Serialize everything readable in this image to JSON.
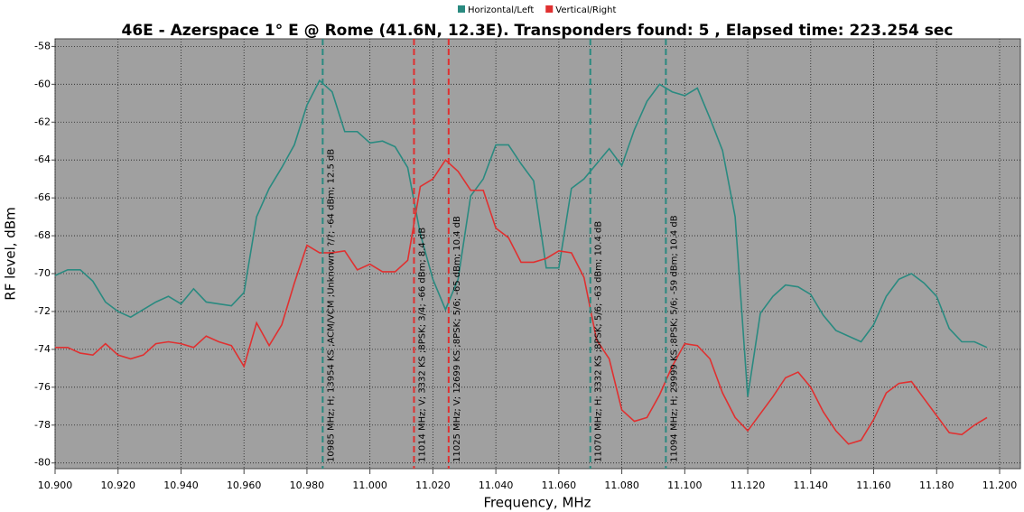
{
  "chart_data": {
    "type": "line",
    "title": "46E - Azerspace 1° E @ Rome (41.6N, 12.3E). Transponders found: 5 , Elapsed time: 223.254 sec",
    "x_label": "Frequency, MHz",
    "y_label": "RF level, dBm",
    "grid": true,
    "legend": "top",
    "x": [
      10.9,
      10.904,
      10.908,
      10.912,
      10.916,
      10.92,
      10.924,
      10.928,
      10.932,
      10.936,
      10.94,
      10.944,
      10.948,
      10.952,
      10.956,
      10.96,
      10.964,
      10.968,
      10.972,
      10.976,
      10.98,
      10.984,
      10.988,
      10.992,
      10.996,
      11.0,
      11.004,
      11.008,
      11.012,
      11.016,
      11.02,
      11.024,
      11.028,
      11.032,
      11.036,
      11.04,
      11.044,
      11.048,
      11.052,
      11.056,
      11.06,
      11.064,
      11.068,
      11.072,
      11.076,
      11.08,
      11.084,
      11.088,
      11.092,
      11.096,
      11.1,
      11.104,
      11.108,
      11.112,
      11.116,
      11.12,
      11.124,
      11.128,
      11.132,
      11.136,
      11.14,
      11.144,
      11.148,
      11.152,
      11.156,
      11.16,
      11.164,
      11.168,
      11.172,
      11.176,
      11.18,
      11.184,
      11.188,
      11.192,
      11.196
    ],
    "series": [
      {
        "name": "Horizontal/Left",
        "color": "#2a8a80",
        "values": [
          -70.1,
          -69.8,
          -69.8,
          -70.4,
          -71.5,
          -72.0,
          -72.3,
          -71.9,
          -71.5,
          -71.2,
          -71.6,
          -70.8,
          -71.5,
          -71.6,
          -71.7,
          -71.0,
          -67.0,
          -65.5,
          -64.4,
          -63.2,
          -61.1,
          -59.8,
          -60.4,
          -62.5,
          -62.5,
          -63.1,
          -63.0,
          -63.3,
          -64.4,
          -67.9,
          -70.3,
          -71.9,
          -70.3,
          -65.9,
          -65.0,
          -63.2,
          -63.2,
          -64.2,
          -65.1,
          -69.7,
          -69.7,
          -65.5,
          -65.0,
          -64.2,
          -63.4,
          -64.3,
          -62.4,
          -60.9,
          -60.0,
          -60.4,
          -60.6,
          -60.2,
          -61.8,
          -63.5,
          -67.0,
          -76.5,
          -72.1,
          -71.2,
          -70.6,
          -70.7,
          -71.1,
          -72.2,
          -73.0,
          -73.3,
          -73.6,
          -72.7,
          -71.2,
          -70.3,
          -70.0,
          -70.5,
          -71.2,
          -72.9,
          -73.6,
          -73.6,
          -73.9
        ]
      },
      {
        "name": "Vertical/Right",
        "color": "#e03030",
        "values": [
          -73.9,
          -73.9,
          -74.2,
          -74.3,
          -73.7,
          -74.3,
          -74.5,
          -74.3,
          -73.7,
          -73.6,
          -73.7,
          -73.9,
          -73.3,
          -73.6,
          -73.8,
          -74.9,
          -72.6,
          -73.8,
          -72.7,
          -70.5,
          -68.5,
          -68.9,
          -68.9,
          -68.8,
          -69.8,
          -69.5,
          -69.9,
          -69.9,
          -69.3,
          -65.4,
          -65.0,
          -64.0,
          -64.6,
          -65.6,
          -65.6,
          -67.6,
          -68.1,
          -69.4,
          -69.4,
          -69.2,
          -68.8,
          -68.9,
          -70.2,
          -73.5,
          -74.5,
          -77.2,
          -77.8,
          -77.6,
          -76.4,
          -74.9,
          -73.7,
          -73.8,
          -74.5,
          -76.3,
          -77.6,
          -78.3,
          -77.4,
          -76.5,
          -75.5,
          -75.2,
          -76.0,
          -77.3,
          -78.3,
          -79.0,
          -78.8,
          -77.7,
          -76.3,
          -75.8,
          -75.7,
          -76.6,
          -77.5,
          -78.4,
          -78.5,
          -78.0,
          -77.6
        ]
      }
    ],
    "markers": [
      {
        "x": 10.985,
        "color": "#2a8a80",
        "label": "10985 MHz; H; 13954 KS ;ACM/VCM ;Unknown; ?/?; -64 dBm; 12.5 dB"
      },
      {
        "x": 11.014,
        "color": "#e03030",
        "label": "11014 MHz; V; 3332 KS ;8PSK; 3/4; -66 dBm; 8.4 dB"
      },
      {
        "x": 11.025,
        "color": "#e03030",
        "label": "11025 MHz; V; 12699 KS ;8PSK; 5/6; -65 dBm; 10.4 dB"
      },
      {
        "x": 11.07,
        "color": "#2a8a80",
        "label": "11070 MHz; H; 3332 KS ;8PSK; 5/6; -63 dBm; 10.4 dB"
      },
      {
        "x": 11.094,
        "color": "#2a8a80",
        "label": "11094 MHz; H; 29999 KS ;8PSK; 5/6; -59 dBm; 10.4 dB"
      }
    ],
    "xlim": [
      10.9,
      11.2066
    ],
    "ylim": [
      -80.3,
      -57.6
    ],
    "xticks": [
      {
        "value": 10.9,
        "label": "10.900"
      },
      {
        "value": 10.92,
        "label": "10.920"
      },
      {
        "value": 10.94,
        "label": "10.940"
      },
      {
        "value": 10.96,
        "label": "10.960"
      },
      {
        "value": 10.98,
        "label": "10.980"
      },
      {
        "value": 11.0,
        "label": "11.000"
      },
      {
        "value": 11.02,
        "label": "11.020"
      },
      {
        "value": 11.04,
        "label": "11.040"
      },
      {
        "value": 11.06,
        "label": "11.060"
      },
      {
        "value": 11.08,
        "label": "11.080"
      },
      {
        "value": 11.1,
        "label": "11.100"
      },
      {
        "value": 11.12,
        "label": "11.120"
      },
      {
        "value": 11.14,
        "label": "11.140"
      },
      {
        "value": 11.16,
        "label": "11.160"
      },
      {
        "value": 11.18,
        "label": "11.180"
      },
      {
        "value": 11.2,
        "label": "11.200"
      }
    ],
    "yticks": [
      -58,
      -60,
      -62,
      -64,
      -66,
      -68,
      -70,
      -72,
      -74,
      -76,
      -78,
      -80
    ]
  }
}
